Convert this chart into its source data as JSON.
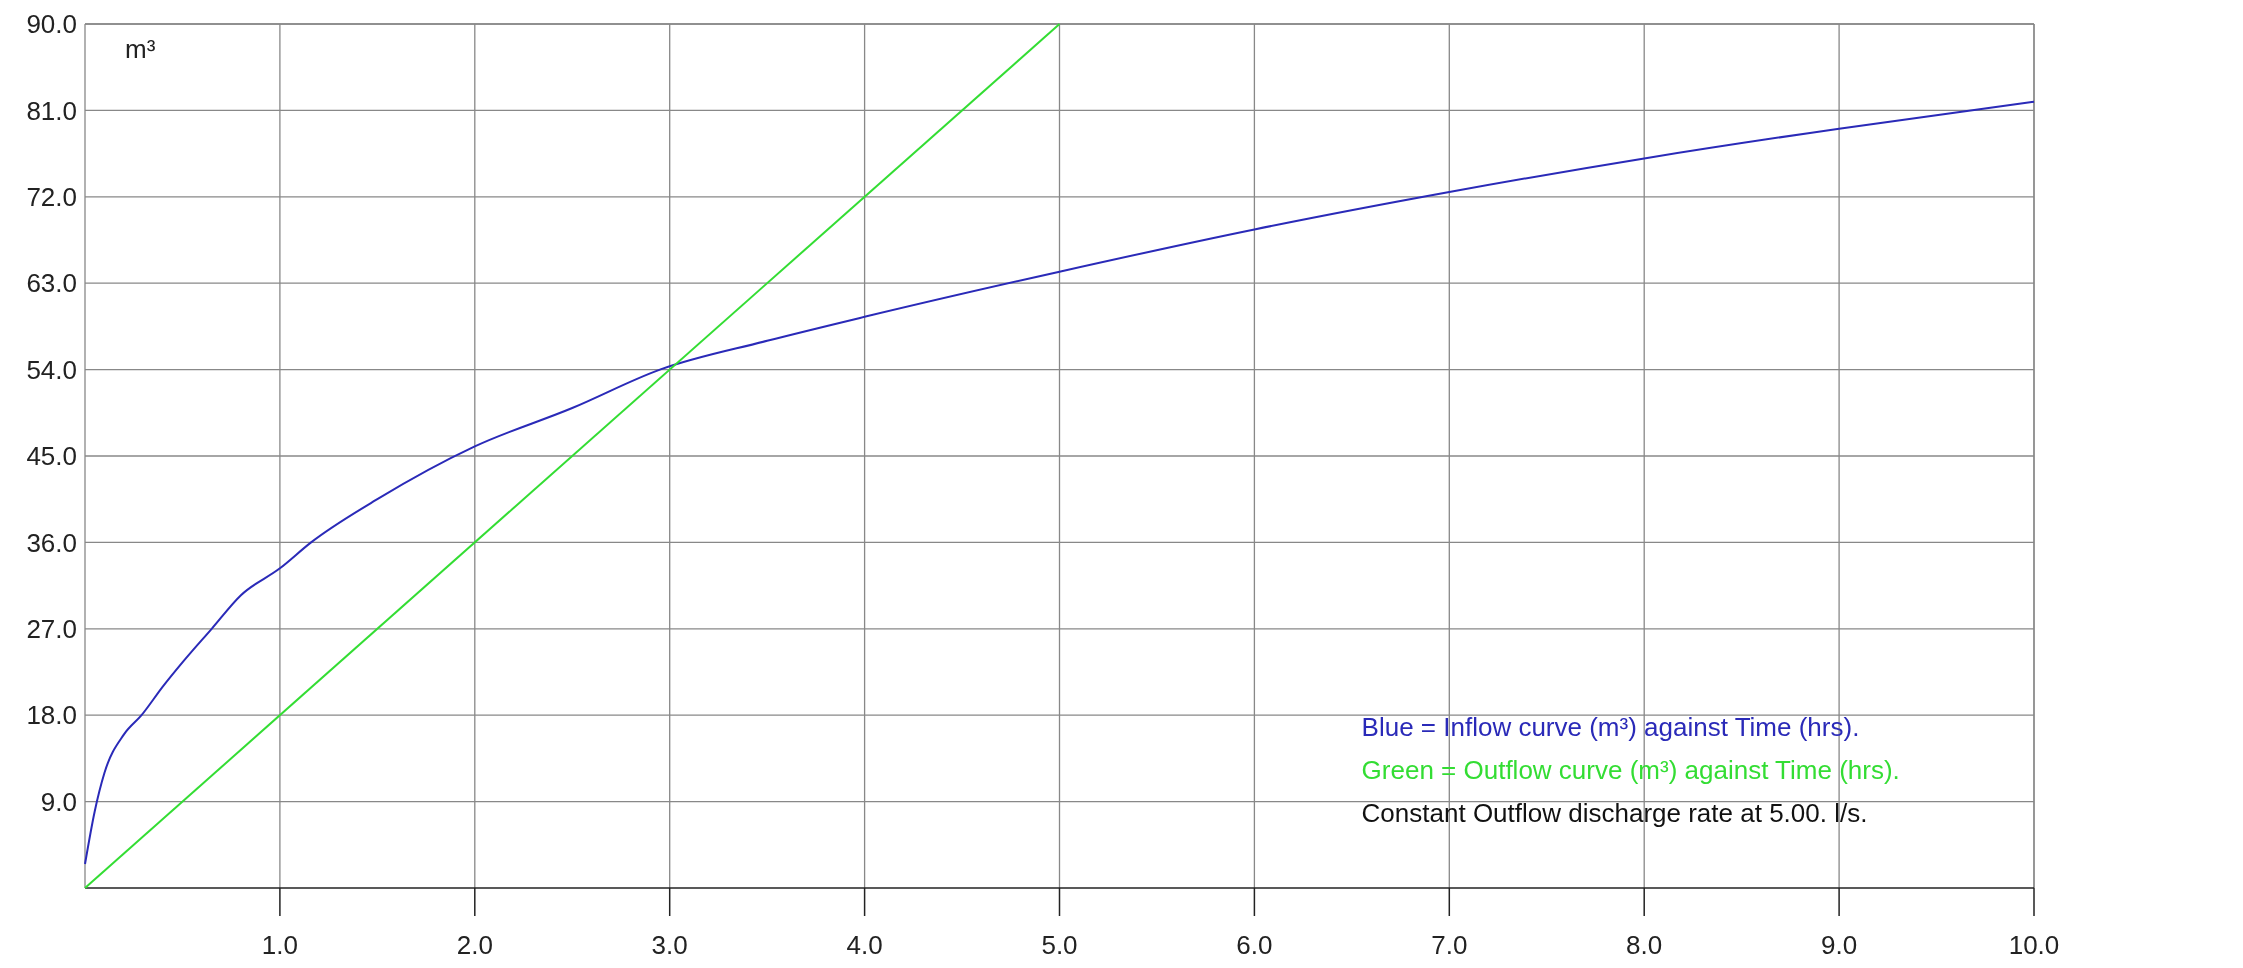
{
  "chart_data": {
    "type": "line",
    "ylabel": "m³",
    "xlim": [
      0,
      10
    ],
    "ylim": [
      0,
      90
    ],
    "xticks": [
      {
        "value": 1,
        "label": "1.0"
      },
      {
        "value": 2,
        "label": "2.0"
      },
      {
        "value": 3,
        "label": "3.0"
      },
      {
        "value": 4,
        "label": "4.0"
      },
      {
        "value": 5,
        "label": "5.0"
      },
      {
        "value": 6,
        "label": "6.0"
      },
      {
        "value": 7,
        "label": "7.0"
      },
      {
        "value": 8,
        "label": "8.0"
      },
      {
        "value": 9,
        "label": "9.0"
      },
      {
        "value": 10,
        "label": "10.0"
      }
    ],
    "yticks": [
      {
        "value": 9,
        "label": "9.0"
      },
      {
        "value": 18,
        "label": "18.0"
      },
      {
        "value": 27,
        "label": "27.0"
      },
      {
        "value": 36,
        "label": "36.0"
      },
      {
        "value": 45,
        "label": "45.0"
      },
      {
        "value": 54,
        "label": "54.0"
      },
      {
        "value": 63,
        "label": "63.0"
      },
      {
        "value": 72,
        "label": "72.0"
      },
      {
        "value": 81,
        "label": "81.0"
      },
      {
        "value": 90,
        "label": "90.0"
      }
    ],
    "grid": true,
    "marker": "none",
    "line_style": "solid",
    "series": [
      {
        "color": "#2a2ab8",
        "x": [
          0,
          0.05,
          0.1,
          0.2,
          0.29,
          0.4,
          0.5,
          0.65,
          0.8,
          1.0,
          1.16,
          1.5,
          2,
          2.5,
          2.95,
          3.5,
          4,
          5,
          6,
          7,
          8,
          9,
          10
        ],
        "values": [
          2.5,
          8,
          12,
          16,
          18,
          21,
          23.5,
          27,
          30.5,
          33.3,
          36,
          40.5,
          46,
          50,
          54,
          57,
          59.5,
          64.2,
          68.6,
          72.5,
          76,
          79.1,
          81.9
        ]
      },
      {
        "color": "#33dd33",
        "x": [
          0,
          5
        ],
        "values": [
          0,
          90
        ]
      }
    ],
    "annotations": [
      "Blue = Inflow curve (m³) against Time (hrs).",
      "Green = Outflow curve (m³) against Time (hrs).",
      "Constant Outflow discharge rate at 5.00. l/s."
    ]
  }
}
